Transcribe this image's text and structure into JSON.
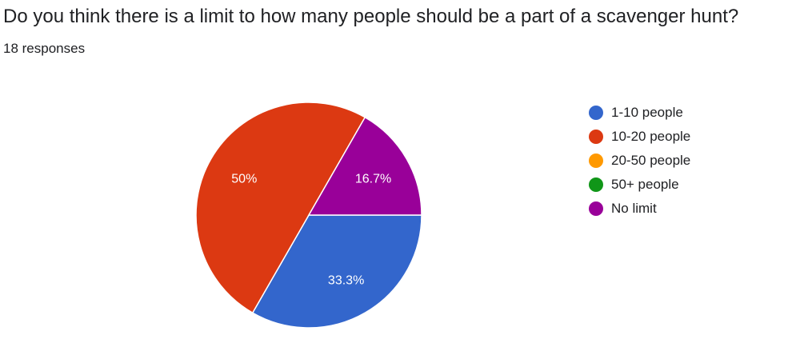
{
  "question": {
    "title": "Do you think there is a limit to how many people should be a part of a scavenger hunt?",
    "responses": "18 responses"
  },
  "chart_data": {
    "type": "pie",
    "categories": [
      "1-10 people",
      "10-20 people",
      "20-50 people",
      "50+ people",
      "No limit"
    ],
    "values": [
      33.3,
      50,
      0,
      0,
      16.7
    ],
    "data_labels": [
      "33.3%",
      "50%",
      "",
      "",
      "16.7%"
    ],
    "colors": [
      "#3366cc",
      "#dc3912",
      "#ff9900",
      "#109618",
      "#990099"
    ],
    "legend_position": "right"
  }
}
